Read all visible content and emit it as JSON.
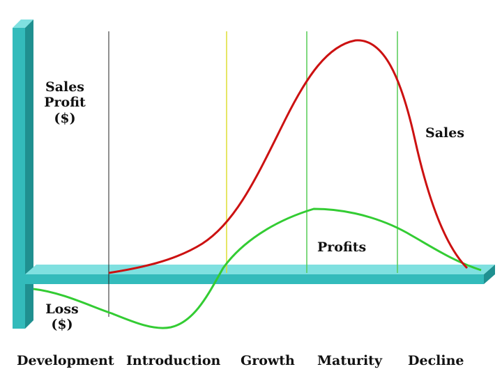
{
  "chart_data": {
    "type": "line",
    "y_axis_label_upper": [
      "Sales",
      "Profit",
      "($)"
    ],
    "y_axis_label_lower": [
      "Loss",
      "($)"
    ],
    "stages": [
      "Development",
      "Introduction",
      "Growth",
      "Maturity",
      "Decline"
    ],
    "series": [
      {
        "name": "Sales",
        "color": "#cc1111"
      },
      {
        "name": "Profits",
        "color": "#33cc33"
      }
    ],
    "colors": {
      "axis": "#33bbbb",
      "axis_dark": "#1f9090",
      "stage_divider_intro": "#222222",
      "stage_divider_growth": "#dddd33",
      "stage_divider_maturity": "#55cc55",
      "stage_divider_decline": "#55cc55"
    },
    "grid": false,
    "legend": "none"
  }
}
